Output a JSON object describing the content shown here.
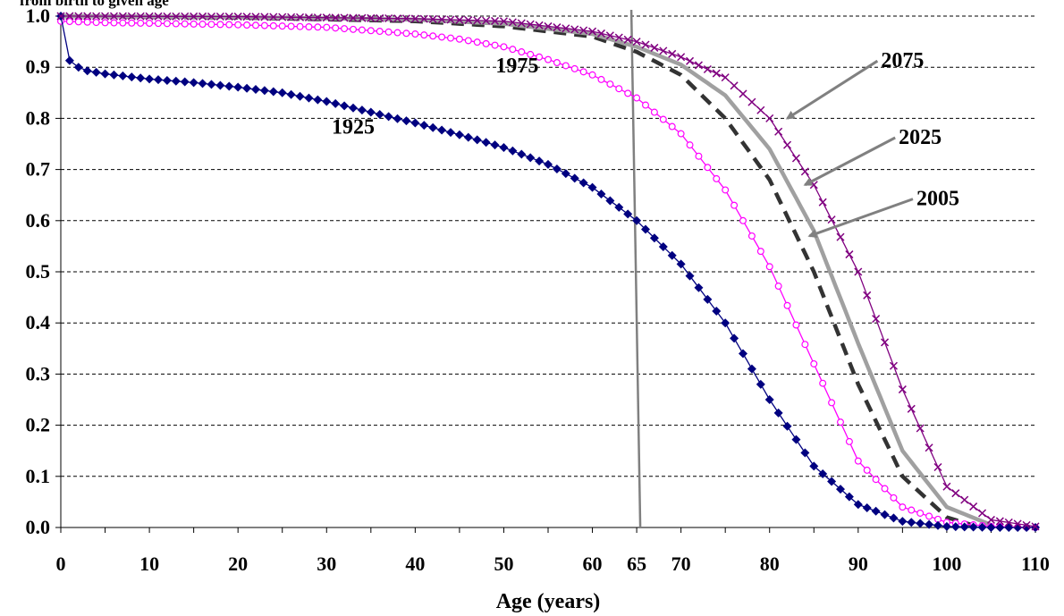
{
  "chart_data": {
    "type": "line",
    "title": "from birth to given age",
    "xlabel": "Age (years)",
    "ylabel": "",
    "xlim": [
      0,
      110
    ],
    "ylim": [
      0,
      1.0
    ],
    "x_tick_labels": [
      "0",
      "10",
      "20",
      "30",
      "40",
      "50",
      "60",
      "65",
      "70",
      "80",
      "90",
      "100",
      "110"
    ],
    "x_tick_values": [
      0,
      10,
      20,
      30,
      40,
      50,
      60,
      65,
      70,
      80,
      90,
      100,
      110
    ],
    "y_tick_labels": [
      "0.0",
      "0.1",
      "0.2",
      "0.3",
      "0.4",
      "0.5",
      "0.6",
      "0.7",
      "0.8",
      "0.9",
      "1.0"
    ],
    "y_tick_values": [
      0,
      0.1,
      0.2,
      0.3,
      0.4,
      0.5,
      0.6,
      0.7,
      0.8,
      0.9,
      1.0
    ],
    "grid": "horizontal dashed",
    "vertical_reference_age": 65,
    "series": [
      {
        "name": "1925",
        "color": "#000080",
        "marker": "diamond",
        "points": [
          [
            0,
            1.0
          ],
          [
            1,
            0.913
          ],
          [
            2,
            0.9
          ],
          [
            3,
            0.893
          ],
          [
            5,
            0.887
          ],
          [
            10,
            0.877
          ],
          [
            15,
            0.87
          ],
          [
            20,
            0.861
          ],
          [
            25,
            0.85
          ],
          [
            30,
            0.833
          ],
          [
            35,
            0.812
          ],
          [
            40,
            0.791
          ],
          [
            45,
            0.768
          ],
          [
            50,
            0.743
          ],
          [
            55,
            0.71
          ],
          [
            60,
            0.665
          ],
          [
            65,
            0.6
          ],
          [
            70,
            0.515
          ],
          [
            75,
            0.4
          ],
          [
            80,
            0.25
          ],
          [
            85,
            0.12
          ],
          [
            90,
            0.045
          ],
          [
            95,
            0.012
          ],
          [
            100,
            0.002
          ],
          [
            105,
            0.0
          ],
          [
            110,
            0.0
          ]
        ]
      },
      {
        "name": "1975",
        "color": "#ff00ff",
        "marker": "circle",
        "points": [
          [
            0,
            0.99
          ],
          [
            5,
            0.987
          ],
          [
            10,
            0.986
          ],
          [
            20,
            0.983
          ],
          [
            30,
            0.978
          ],
          [
            40,
            0.965
          ],
          [
            45,
            0.955
          ],
          [
            50,
            0.94
          ],
          [
            55,
            0.915
          ],
          [
            60,
            0.885
          ],
          [
            65,
            0.84
          ],
          [
            70,
            0.77
          ],
          [
            75,
            0.66
          ],
          [
            80,
            0.51
          ],
          [
            85,
            0.32
          ],
          [
            90,
            0.13
          ],
          [
            95,
            0.04
          ],
          [
            100,
            0.01
          ],
          [
            105,
            0.002
          ],
          [
            110,
            0.0
          ]
        ]
      },
      {
        "name": "2005",
        "color": "#333333",
        "marker": "none",
        "points": [
          [
            0,
            1.0
          ],
          [
            20,
            0.997
          ],
          [
            40,
            0.99
          ],
          [
            50,
            0.98
          ],
          [
            60,
            0.96
          ],
          [
            65,
            0.93
          ],
          [
            70,
            0.885
          ],
          [
            75,
            0.8
          ],
          [
            80,
            0.68
          ],
          [
            85,
            0.5
          ],
          [
            90,
            0.28
          ],
          [
            95,
            0.1
          ],
          [
            100,
            0.02
          ],
          [
            103,
            0.004
          ]
        ]
      },
      {
        "name": "2025",
        "color": "#a0a0a0",
        "marker": "none",
        "points": [
          [
            0,
            1.0
          ],
          [
            20,
            0.998
          ],
          [
            40,
            0.993
          ],
          [
            50,
            0.985
          ],
          [
            60,
            0.965
          ],
          [
            65,
            0.94
          ],
          [
            70,
            0.905
          ],
          [
            75,
            0.845
          ],
          [
            80,
            0.74
          ],
          [
            85,
            0.58
          ],
          [
            90,
            0.36
          ],
          [
            95,
            0.15
          ],
          [
            100,
            0.04
          ],
          [
            105,
            0.005
          ]
        ]
      },
      {
        "name": "2075",
        "color": "#800080",
        "marker": "x",
        "points": [
          [
            0,
            1.0
          ],
          [
            20,
            0.999
          ],
          [
            40,
            0.995
          ],
          [
            50,
            0.99
          ],
          [
            55,
            0.98
          ],
          [
            60,
            0.97
          ],
          [
            65,
            0.95
          ],
          [
            70,
            0.92
          ],
          [
            75,
            0.88
          ],
          [
            80,
            0.8
          ],
          [
            85,
            0.67
          ],
          [
            90,
            0.5
          ],
          [
            95,
            0.27
          ],
          [
            100,
            0.08
          ],
          [
            105,
            0.015
          ],
          [
            110,
            0.002
          ]
        ]
      }
    ],
    "annotations": [
      {
        "text": "1925",
        "x": 33,
        "y": 0.77
      },
      {
        "text": "1975",
        "x": 51.5,
        "y": 0.89
      },
      {
        "text": "2075",
        "x": 95,
        "y": 0.9,
        "arrow_to": [
          82,
          0.8
        ]
      },
      {
        "text": "2025",
        "x": 97,
        "y": 0.75,
        "arrow_to": [
          84,
          0.67
        ]
      },
      {
        "text": "2005",
        "x": 99,
        "y": 0.63,
        "arrow_to": [
          84.5,
          0.57
        ]
      }
    ]
  }
}
